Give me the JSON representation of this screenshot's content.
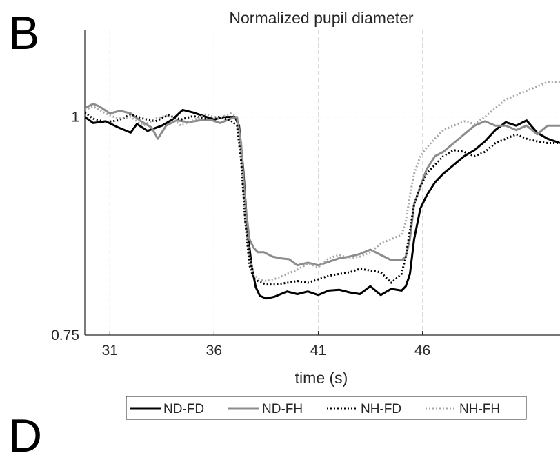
{
  "panel_label": "B",
  "panel_label_next": "D",
  "chart_data": {
    "type": "line",
    "title": "Normalized pupil diameter",
    "xlabel": "time (s)",
    "ylabel": "",
    "xlim": [
      29.8,
      52.6
    ],
    "ylim": [
      0.75,
      1.1
    ],
    "xticks": [
      31,
      36,
      41,
      46
    ],
    "yticks": [
      {
        "value": 0.75,
        "label": "0.75"
      },
      {
        "value": 1.0,
        "label": "1"
      }
    ],
    "grid": true,
    "legend_position": "bottom-outside",
    "series": [
      {
        "name": "ND-FD",
        "color": "#000000",
        "style": "solid",
        "x": [
          29.8,
          30.2,
          30.8,
          31.4,
          32.0,
          32.3,
          32.8,
          33.5,
          34.0,
          34.5,
          35.0,
          35.5,
          36.0,
          36.5,
          37.0,
          37.2,
          37.4,
          37.6,
          37.8,
          38.0,
          38.2,
          38.5,
          38.9,
          39.5,
          40.0,
          40.5,
          41.0,
          41.5,
          42.0,
          42.5,
          43.0,
          43.5,
          44.0,
          44.5,
          45.0,
          45.2,
          45.4,
          45.6,
          45.9,
          46.2,
          46.6,
          47.0,
          47.5,
          48.0,
          48.5,
          49.0,
          49.5,
          50.0,
          50.5,
          51.0,
          51.5,
          52.0,
          52.6
        ],
        "y": [
          1.0,
          0.993,
          0.995,
          0.988,
          0.982,
          0.992,
          0.984,
          0.99,
          0.997,
          1.008,
          1.005,
          1.001,
          0.997,
          1.0,
          1.0,
          0.99,
          0.94,
          0.87,
          0.83,
          0.805,
          0.795,
          0.792,
          0.794,
          0.8,
          0.797,
          0.8,
          0.796,
          0.801,
          0.802,
          0.799,
          0.797,
          0.806,
          0.796,
          0.803,
          0.801,
          0.806,
          0.82,
          0.86,
          0.895,
          0.91,
          0.925,
          0.935,
          0.945,
          0.955,
          0.962,
          0.972,
          0.985,
          0.994,
          0.99,
          0.996,
          0.982,
          0.975,
          0.97
        ]
      },
      {
        "name": "ND-FH",
        "color": "#8c8c8c",
        "style": "solid",
        "x": [
          29.8,
          30.2,
          30.5,
          31.0,
          31.5,
          32.0,
          32.5,
          33.0,
          33.3,
          33.7,
          34.2,
          34.8,
          35.3,
          35.8,
          36.3,
          36.8,
          37.1,
          37.3,
          37.5,
          37.7,
          37.9,
          38.1,
          38.4,
          38.8,
          39.2,
          39.6,
          40.0,
          40.5,
          41.0,
          41.5,
          42.0,
          42.5,
          43.0,
          43.5,
          44.0,
          44.5,
          45.0,
          45.2,
          45.4,
          45.6,
          45.9,
          46.2,
          46.6,
          47.0,
          47.5,
          48.0,
          48.5,
          49.0,
          49.5,
          50.0,
          50.5,
          51.0,
          51.5,
          52.0,
          52.6
        ],
        "y": [
          1.01,
          1.015,
          1.012,
          1.004,
          1.007,
          1.004,
          0.995,
          0.988,
          0.975,
          0.99,
          0.996,
          0.994,
          0.996,
          0.997,
          0.993,
          0.998,
          1.0,
          0.97,
          0.9,
          0.86,
          0.85,
          0.845,
          0.845,
          0.84,
          0.838,
          0.837,
          0.83,
          0.833,
          0.83,
          0.834,
          0.838,
          0.84,
          0.843,
          0.848,
          0.842,
          0.836,
          0.836,
          0.84,
          0.86,
          0.9,
          0.92,
          0.94,
          0.955,
          0.96,
          0.97,
          0.98,
          0.99,
          0.995,
          0.99,
          0.99,
          0.985,
          0.99,
          0.98,
          0.99,
          0.99
        ]
      },
      {
        "name": "NH-FD",
        "color": "#000000",
        "style": "dotted",
        "x": [
          29.8,
          30.2,
          30.8,
          31.4,
          32.0,
          32.6,
          33.2,
          33.8,
          34.4,
          35.0,
          35.6,
          36.2,
          36.8,
          37.1,
          37.3,
          37.5,
          37.7,
          37.9,
          38.1,
          38.5,
          39.0,
          39.5,
          40.0,
          40.5,
          41.0,
          41.5,
          42.0,
          42.5,
          43.0,
          43.5,
          44.0,
          44.5,
          45.0,
          45.2,
          45.4,
          45.6,
          45.9,
          46.2,
          46.6,
          47.0,
          47.5,
          48.0,
          48.5,
          49.0,
          49.5,
          50.0,
          50.5,
          51.0,
          51.5,
          52.0,
          52.6
        ],
        "y": [
          1.005,
          0.998,
          0.994,
          0.996,
          1.003,
          0.998,
          0.995,
          1.002,
          0.997,
          1.001,
          0.998,
          1.0,
          0.996,
          0.99,
          0.95,
          0.88,
          0.83,
          0.815,
          0.812,
          0.808,
          0.808,
          0.81,
          0.812,
          0.81,
          0.814,
          0.818,
          0.82,
          0.822,
          0.826,
          0.824,
          0.822,
          0.81,
          0.82,
          0.84,
          0.87,
          0.9,
          0.92,
          0.935,
          0.945,
          0.955,
          0.962,
          0.96,
          0.955,
          0.96,
          0.97,
          0.975,
          0.98,
          0.975,
          0.972,
          0.97,
          0.97
        ]
      },
      {
        "name": "NH-FH",
        "color": "#a6a6a6",
        "style": "dotted",
        "x": [
          29.8,
          30.2,
          30.8,
          31.4,
          32.0,
          32.6,
          33.2,
          33.8,
          34.4,
          35.0,
          35.6,
          36.2,
          36.8,
          37.1,
          37.3,
          37.5,
          37.7,
          37.9,
          38.1,
          38.5,
          39.0,
          39.5,
          40.0,
          40.5,
          41.0,
          41.5,
          42.0,
          42.5,
          43.0,
          43.5,
          44.0,
          44.5,
          45.0,
          45.2,
          45.4,
          45.6,
          45.9,
          46.2,
          46.6,
          47.0,
          47.5,
          48.0,
          48.5,
          49.0,
          49.5,
          50.0,
          50.5,
          51.0,
          51.5,
          52.0,
          52.6
        ],
        "y": [
          1.008,
          1.012,
          1.004,
          0.998,
          1.0,
          0.99,
          0.998,
          1.002,
          0.99,
          0.996,
          1.003,
          0.998,
          1.004,
          1.0,
          0.96,
          0.88,
          0.84,
          0.82,
          0.815,
          0.812,
          0.815,
          0.82,
          0.825,
          0.832,
          0.828,
          0.838,
          0.842,
          0.838,
          0.84,
          0.845,
          0.855,
          0.86,
          0.865,
          0.88,
          0.91,
          0.935,
          0.955,
          0.965,
          0.975,
          0.985,
          0.99,
          0.995,
          0.992,
          1.0,
          1.01,
          1.02,
          1.025,
          1.03,
          1.035,
          1.04,
          1.04
        ]
      }
    ]
  }
}
